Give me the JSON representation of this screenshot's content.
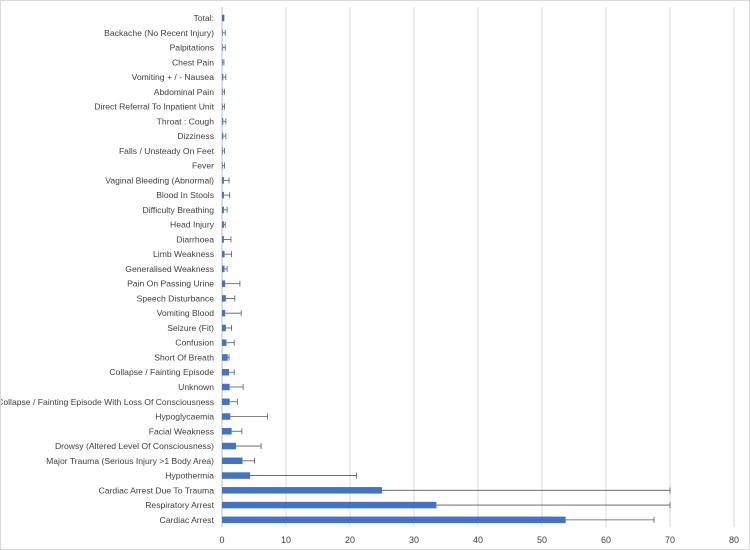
{
  "chart_data": {
    "type": "bar",
    "orientation": "horizontal",
    "categories": [
      "Total:",
      "Backache (No Recent Injury)",
      "Palpitations",
      "Chest Pain",
      "Vomiting + / - Nausea",
      "Abdominal Pain",
      "Direct Referral To Inpatient Unit",
      "Throat : Cough",
      "Dizziness",
      "Falls / Unsteady On Feet",
      "Fever",
      "Vaginal Bleeding (Abnormal)",
      "Blood In Stools",
      "Difficulty Breathing",
      "Head Injury",
      "Diarrhoea",
      "Limb Weakness",
      "Generalised Weakness",
      "Pain On Passing Urine",
      "Speech Disturbance",
      "Vomiting Blood",
      "Seizure (Fit)",
      "Confusion",
      "Short Of Breath",
      "Collapse / Fainting Episode",
      "Unknown",
      "Collapse / Fainting Episode With Loss Of Consciousness",
      "Hypoglycaemia",
      "Facial Weakness",
      "Drowsy (Altered Level Of Consciousness)",
      "Major Trauma (Serious Injury >1 Body Area)",
      "Hypothermia",
      "Cardiac Arrest Due To Trauma",
      "Respiratory Arrest",
      "Cardiac Arrest"
    ],
    "values": [
      0.3,
      0.1,
      0.1,
      0.1,
      0.2,
      0.1,
      0.1,
      0.2,
      0.2,
      0.1,
      0.1,
      0.3,
      0.3,
      0.3,
      0.3,
      0.3,
      0.4,
      0.4,
      0.5,
      0.6,
      0.5,
      0.6,
      0.7,
      0.9,
      1.1,
      1.2,
      1.2,
      1.3,
      1.5,
      2.2,
      3.2,
      4.4,
      25.0,
      33.5,
      53.7
    ],
    "error_upper": [
      0.3,
      0.5,
      0.5,
      0.3,
      0.6,
      0.4,
      0.4,
      0.6,
      0.6,
      0.4,
      0.4,
      1.1,
      1.2,
      0.8,
      0.5,
      1.4,
      1.5,
      0.8,
      2.8,
      2.0,
      3.0,
      1.5,
      1.9,
      1.1,
      1.9,
      3.3,
      2.4,
      7.1,
      3.1,
      6.1,
      5.1,
      21.0,
      70.0,
      70.0,
      67.5
    ],
    "xlim": [
      0,
      80
    ],
    "xticks": [
      0,
      10,
      20,
      30,
      40,
      50,
      60,
      70,
      80
    ],
    "xlabel": "",
    "ylabel": "",
    "grid": true,
    "bar_color": "#4472c4",
    "legend": "none"
  }
}
